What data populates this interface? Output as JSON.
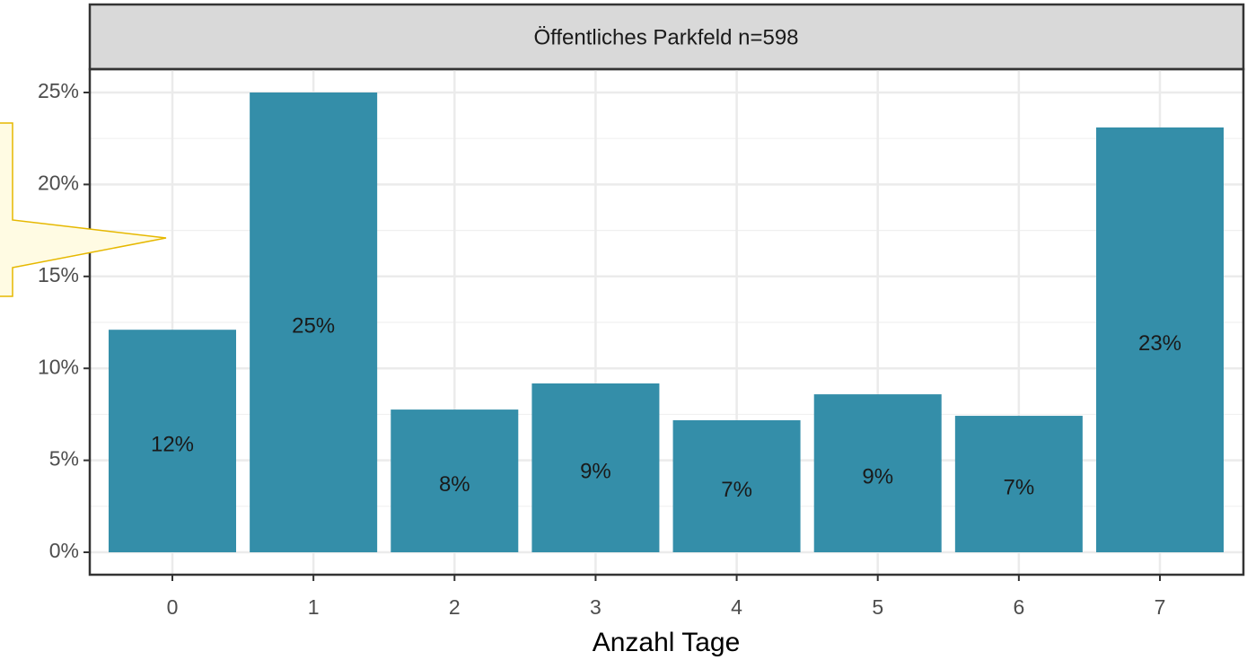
{
  "chart_data": {
    "type": "bar",
    "title": "Öffentliches Parkfeld n=598",
    "x_label": "Anzahl Tage",
    "categories": [
      "0",
      "1",
      "2",
      "3",
      "4",
      "5",
      "6",
      "7"
    ],
    "values": [
      12.1,
      25.0,
      7.76,
      9.18,
      7.18,
      8.59,
      7.42,
      23.1
    ],
    "value_labels": [
      "12%",
      "25%",
      "8%",
      "9%",
      "7%",
      "9%",
      "7%",
      "23%"
    ],
    "color": "#348ea9",
    "ylim": [
      -1.22,
      26.27
    ],
    "yticks": [
      {
        "value": 0,
        "label": "0%"
      },
      {
        "value": 5,
        "label": "5%"
      },
      {
        "value": 10,
        "label": "10%"
      },
      {
        "value": 15,
        "label": "15%"
      },
      {
        "value": 20,
        "label": "20%"
      },
      {
        "value": 25,
        "label": "25%"
      }
    ],
    "grid": true
  }
}
